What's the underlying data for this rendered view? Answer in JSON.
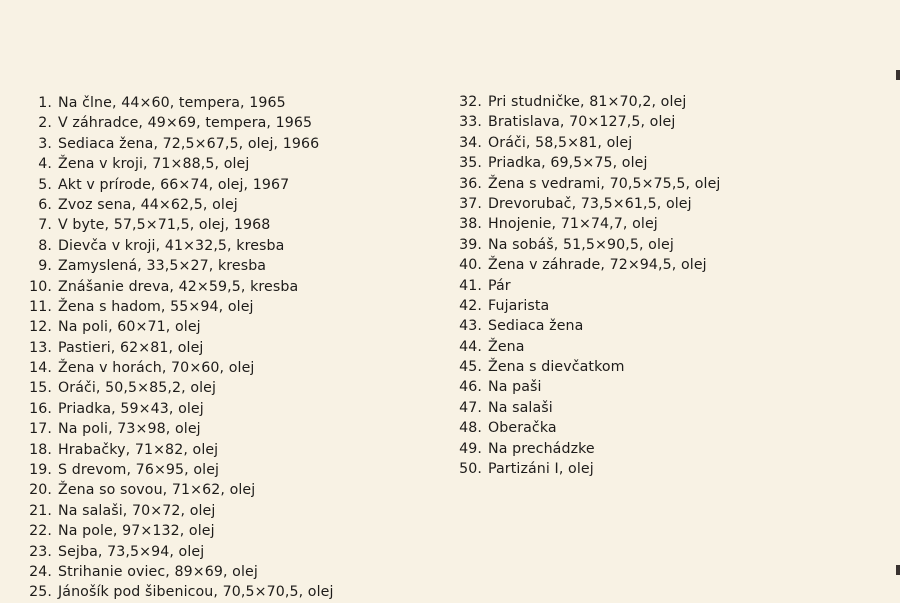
{
  "left_column": [
    {
      "n": "1.",
      "text": "Na člne, 44×60, tempera, 1965"
    },
    {
      "n": "2.",
      "text": "V záhradce, 49×69, tempera, 1965"
    },
    {
      "n": "3.",
      "text": "Sediaca žena, 72,5×67,5, olej, 1966"
    },
    {
      "n": "4.",
      "text": "Žena v kroji, 71×88,5, olej"
    },
    {
      "n": "5.",
      "text": "Akt v prírode, 66×74, olej, 1967"
    },
    {
      "n": "6.",
      "text": "Zvoz sena, 44×62,5, olej"
    },
    {
      "n": "7.",
      "text": "V byte, 57,5×71,5, olej, 1968"
    },
    {
      "n": "8.",
      "text": "Dievča v kroji, 41×32,5, kresba"
    },
    {
      "n": "9.",
      "text": "Zamyslená, 33,5×27, kresba"
    },
    {
      "n": "10.",
      "text": "Znášanie dreva, 42×59,5, kresba"
    },
    {
      "n": "11.",
      "text": "Žena s hadom, 55×94, olej"
    },
    {
      "n": "12.",
      "text": "Na poli, 60×71, olej"
    },
    {
      "n": "13.",
      "text": "Pastieri, 62×81, olej"
    },
    {
      "n": "14.",
      "text": "Žena v horách, 70×60, olej"
    },
    {
      "n": "15.",
      "text": "Oráči, 50,5×85,2, olej"
    },
    {
      "n": "16.",
      "text": "Priadka, 59×43, olej"
    },
    {
      "n": "17.",
      "text": "Na poli, 73×98, olej"
    },
    {
      "n": "18.",
      "text": "Hrabačky, 71×82, olej"
    },
    {
      "n": "19.",
      "text": "S drevom, 76×95, olej"
    },
    {
      "n": "20.",
      "text": "Žena so sovou, 71×62, olej"
    },
    {
      "n": "21.",
      "text": "Na salaši, 70×72, olej"
    },
    {
      "n": "22.",
      "text": "Na pole, 97×132, olej"
    },
    {
      "n": "23.",
      "text": "Sejba, 73,5×94, olej"
    },
    {
      "n": "24.",
      "text": "Strihanie oviec, 89×69, olej"
    },
    {
      "n": "25.",
      "text": "Jánošík pod šibenicou, 70,5×70,5, olej"
    }
  ],
  "right_column": [
    {
      "n": "32.",
      "text": "Pri studničke, 81×70,2, olej"
    },
    {
      "n": "33.",
      "text": "Bratislava, 70×127,5, olej"
    },
    {
      "n": "34.",
      "text": "Oráči, 58,5×81, olej"
    },
    {
      "n": "35.",
      "text": "Priadka, 69,5×75, olej"
    },
    {
      "n": "36.",
      "text": "Žena s vedrami, 70,5×75,5, olej"
    },
    {
      "n": "37.",
      "text": "Drevorubač, 73,5×61,5, olej"
    },
    {
      "n": "38.",
      "text": "Hnojenie, 71×74,7, olej"
    },
    {
      "n": "39.",
      "text": "Na sobáš, 51,5×90,5, olej"
    },
    {
      "n": "40.",
      "text": "Žena v záhrade, 72×94,5, olej"
    },
    {
      "n": "41.",
      "text": "Pár"
    },
    {
      "n": "42.",
      "text": "Fujarista"
    },
    {
      "n": "43.",
      "text": "Sediaca žena"
    },
    {
      "n": "44.",
      "text": "Žena"
    },
    {
      "n": "45.",
      "text": "Žena s dievčatkom"
    },
    {
      "n": "46.",
      "text": "Na paši"
    },
    {
      "n": "47.",
      "text": "Na salaši"
    },
    {
      "n": "48.",
      "text": "Oberačka"
    },
    {
      "n": "49.",
      "text": "Na prechádzke"
    },
    {
      "n": "50.",
      "text": "Partizáni I, olej"
    }
  ],
  "colors": {
    "paper": "#f8f2e4",
    "ink": "#1e1c1a"
  }
}
